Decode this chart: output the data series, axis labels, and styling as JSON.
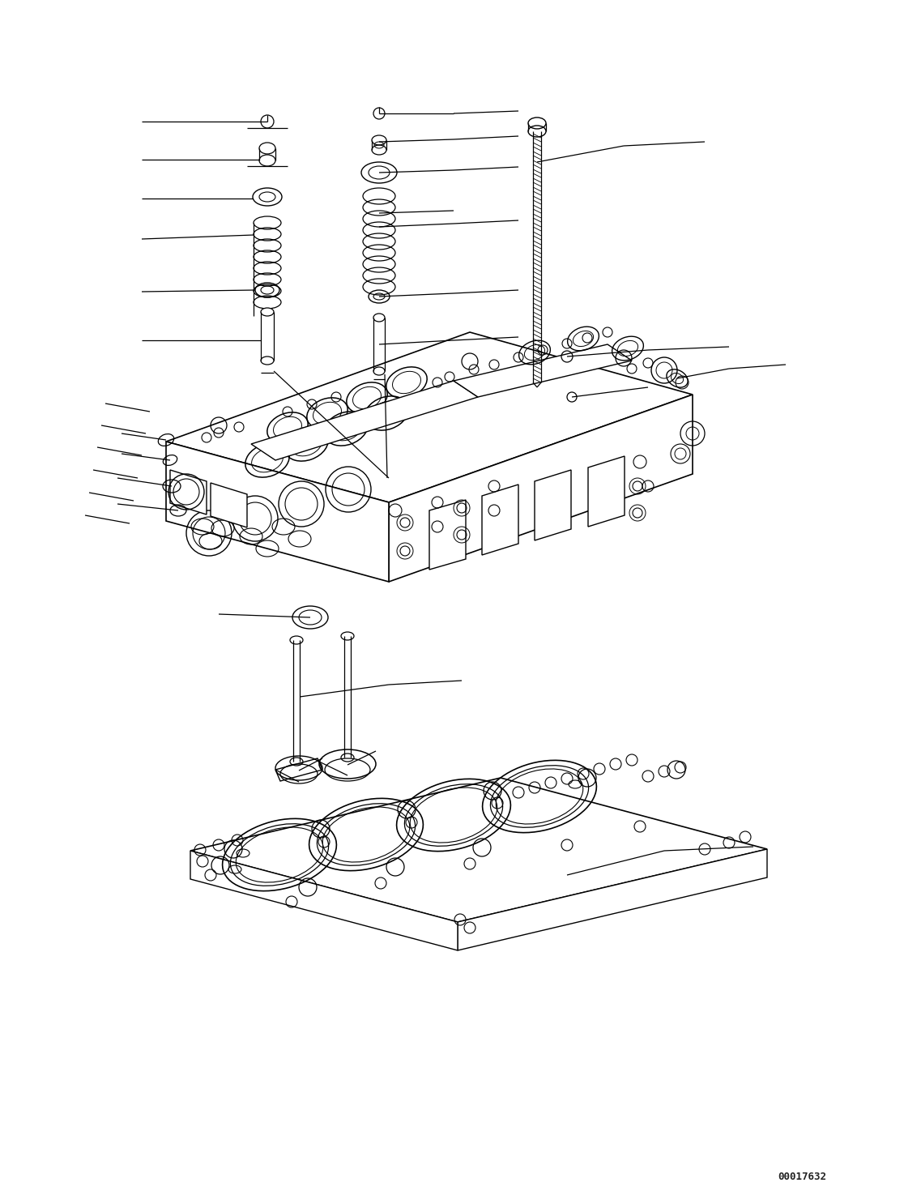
{
  "background_color": "#ffffff",
  "line_color": "#000000",
  "figure_width": 11.37,
  "figure_height": 14.86,
  "watermark": "00017632",
  "lw": 0.9
}
